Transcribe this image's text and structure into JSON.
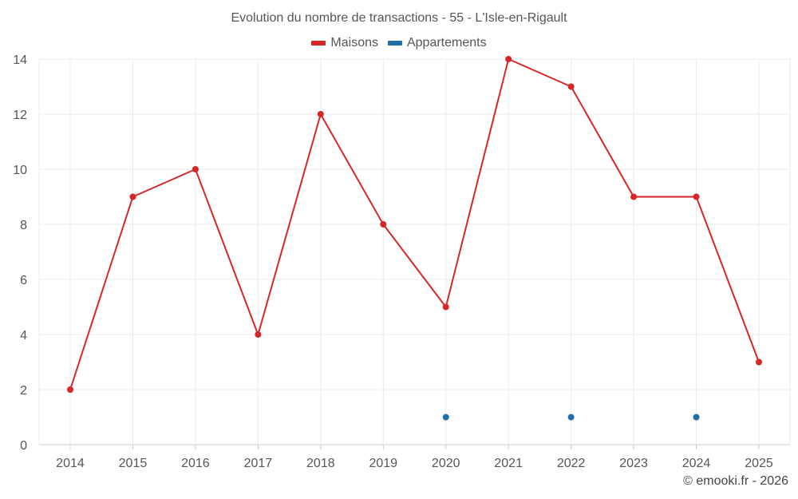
{
  "chart_data": {
    "type": "line",
    "title": "Evolution du nombre de transactions - 55 - L'Isle-en-Rigault",
    "categories": [
      "2014",
      "2015",
      "2016",
      "2017",
      "2018",
      "2019",
      "2020",
      "2021",
      "2022",
      "2023",
      "2024",
      "2025"
    ],
    "series": [
      {
        "name": "Maisons",
        "color": "#d62728",
        "values": [
          2,
          9,
          10,
          4,
          12,
          8,
          5,
          14,
          13,
          9,
          9,
          3
        ],
        "line": true
      },
      {
        "name": "Appartements",
        "color": "#1f6fa8",
        "values": [
          null,
          null,
          null,
          null,
          null,
          null,
          1,
          null,
          1,
          null,
          1,
          null
        ],
        "line": false
      }
    ],
    "yticks": [
      0,
      2,
      4,
      6,
      8,
      10,
      12,
      14
    ],
    "ylim": [
      0,
      14
    ],
    "xlabel": "",
    "ylabel": "",
    "grid": true,
    "legend": "top-center"
  },
  "credit": "© emooki.fr - 2026"
}
